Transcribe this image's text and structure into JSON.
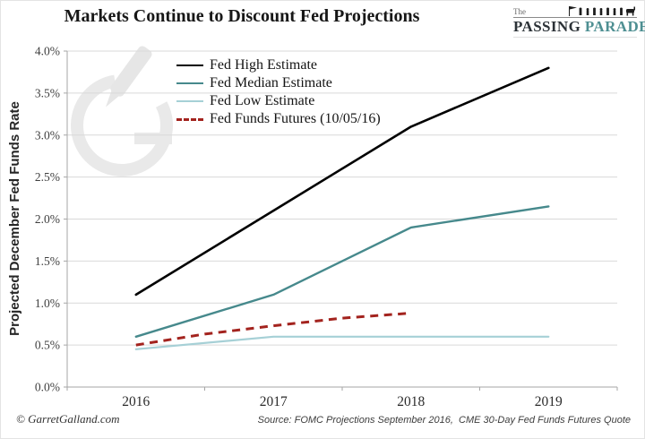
{
  "header": {
    "title": "Markets Continue to Discount Fed Projections"
  },
  "logo": {
    "the": "The",
    "word1": "PASSING",
    "word2": "PARADE",
    "word1_color": "#2c3237",
    "word2_color": "#4e8f92"
  },
  "footer": {
    "copyright": "© GarretGalland.com",
    "source": "Source: FOMC Projections September 2016,  CME 30-Day Fed Funds Futures Quote"
  },
  "chart_data": {
    "type": "line",
    "title": "Markets Continue to Discount Fed Projections",
    "xlabel": "",
    "ylabel": "Projected December Fed Funds Rate",
    "ylim": [
      0,
      4.0
    ],
    "grid": "horizontal",
    "legend_position": "top-left-inside",
    "categories": [
      "2016",
      "2017",
      "2018",
      "2019"
    ],
    "yticks": [
      {
        "value": 0.0,
        "label": "0.0%"
      },
      {
        "value": 0.5,
        "label": "0.5%"
      },
      {
        "value": 1.0,
        "label": "1.0%"
      },
      {
        "value": 1.5,
        "label": "1.5%"
      },
      {
        "value": 2.0,
        "label": "2.0%"
      },
      {
        "value": 2.5,
        "label": "2.5%"
      },
      {
        "value": 3.0,
        "label": "3.0%"
      },
      {
        "value": 3.5,
        "label": "3.5%"
      },
      {
        "value": 4.0,
        "label": "4.0%"
      }
    ],
    "series": [
      {
        "name": "Fed High Estimate",
        "color": "#000000",
        "style": "solid",
        "width": 2.6,
        "x": [
          2016,
          2017,
          2018,
          2019
        ],
        "values": [
          1.1,
          2.1,
          3.1,
          3.8
        ]
      },
      {
        "name": "Fed Median Estimate",
        "color": "#46898c",
        "style": "solid",
        "width": 2.4,
        "x": [
          2016,
          2017,
          2018,
          2019
        ],
        "values": [
          0.6,
          1.1,
          1.9,
          2.15
        ]
      },
      {
        "name": "Fed Low Estimate",
        "color": "#a6d0d6",
        "style": "solid",
        "width": 2.2,
        "x": [
          2016,
          2017,
          2018,
          2019
        ],
        "values": [
          0.45,
          0.6,
          0.6,
          0.6
        ]
      },
      {
        "name": "Fed Funds Futures (10/05/16)",
        "color": "#a3231e",
        "style": "dashed",
        "width": 3,
        "x": [
          2016,
          2016.5,
          2017,
          2017.5,
          2018
        ],
        "values": [
          0.5,
          0.63,
          0.73,
          0.82,
          0.88
        ]
      }
    ],
    "colors": {
      "gridline": "#d9d9d9",
      "axis": "#a6a6a6",
      "tick_label": "#3f3f3f"
    }
  }
}
